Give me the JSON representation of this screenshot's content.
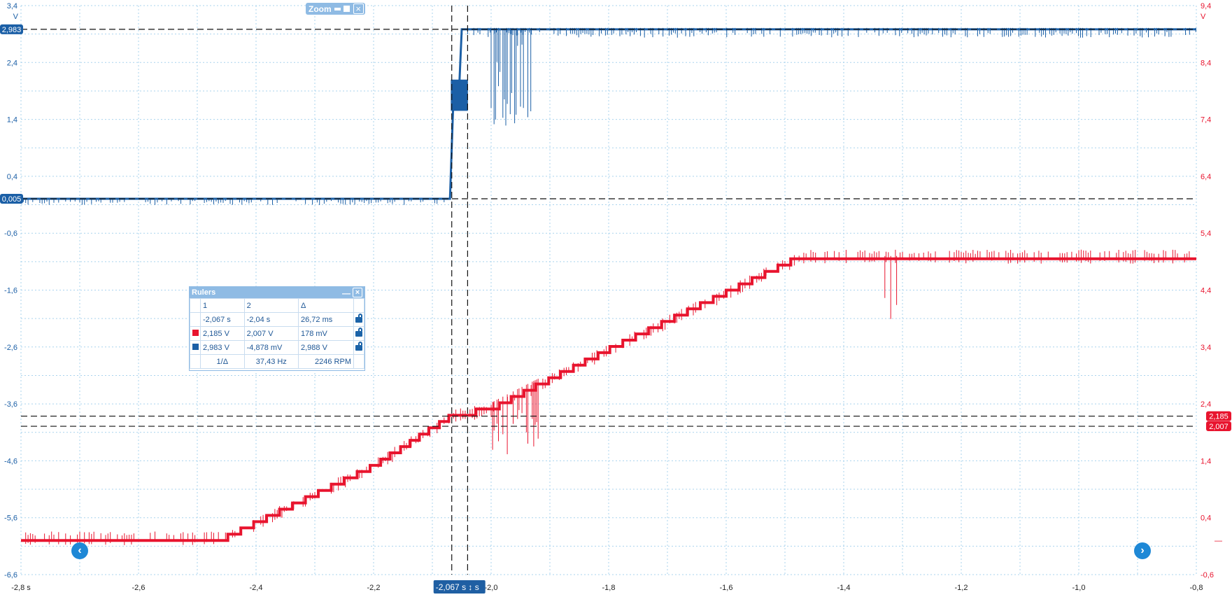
{
  "left_axis": {
    "unit": "V",
    "ticks": [
      "3,4",
      "2,4",
      "1,4",
      "0,4",
      "-0,6",
      "-1,6",
      "-2,6",
      "-3,6",
      "-4,6",
      "-5,6",
      "-6,6"
    ],
    "marker_high": "2,983",
    "marker_low": "0,005"
  },
  "right_axis": {
    "unit": "V",
    "ticks": [
      "9,4",
      "8,4",
      "7,4",
      "6,4",
      "5,4",
      "4,4",
      "3,4",
      "2,4",
      "1,4",
      "0,4",
      "-0,6"
    ],
    "marker_high": "2,185",
    "marker_low": "2,007",
    "dash": "—"
  },
  "x_axis": {
    "ticks": [
      "-2,8 s",
      "-2,6",
      "-2,4",
      "-2,2",
      "-2,0",
      "-1,8",
      "-1,6",
      "-1,4",
      "-1,2",
      "-1,0",
      "-0,8"
    ],
    "cursor_label": "-2,067 s",
    "cursor2_label": "s"
  },
  "zoom": {
    "label": "Zoom"
  },
  "rulers": {
    "title": "Rulers",
    "header": [
      "1",
      "2",
      "Δ"
    ],
    "rows": [
      {
        "c1": "-2,067 s",
        "c2": "-2,04 s",
        "delta": "26,72 ms"
      },
      {
        "c1": "2,185 V",
        "c2": "2,007 V",
        "delta": "178 mV"
      },
      {
        "c1": "2,983 V",
        "c2": "-4,878 mV",
        "delta": "2,988 V"
      }
    ],
    "freq": {
      "label": "1/Δ",
      "hz": "37,43 Hz",
      "rpm": "2246 RPM"
    }
  },
  "colors": {
    "blue": "#1b5fa6",
    "red": "#e8142e",
    "grid": "#a9d3ee",
    "panel": "#8fbbe4"
  },
  "chart_data": {
    "type": "line",
    "x_range": [
      -2.8,
      -0.8
    ],
    "series": [
      {
        "axis": "left",
        "x": [
          -2.8,
          -2.07,
          -2.064,
          -2.055,
          -2.05,
          -2.042,
          -2.04,
          -1.8,
          -1.0,
          -0.8
        ],
        "y": [
          0.005,
          0.005,
          1.8,
          1.8,
          2.983,
          2.983,
          2.983,
          2.983,
          2.983,
          2.983
        ]
      },
      {
        "axis": "right",
        "x": [
          -2.8,
          -2.45,
          -2.2,
          -2.067,
          -2.0,
          -1.8,
          -1.6,
          -1.47,
          -1.2,
          -1.0,
          -0.8
        ],
        "y": [
          0.05,
          0.05,
          1.3,
          2.185,
          2.3,
          3.35,
          4.35,
          5.0,
          5.0,
          5.0,
          5.0
        ]
      }
    ],
    "cursors_x": [
      -2.067,
      -2.04
    ],
    "grid": true
  }
}
